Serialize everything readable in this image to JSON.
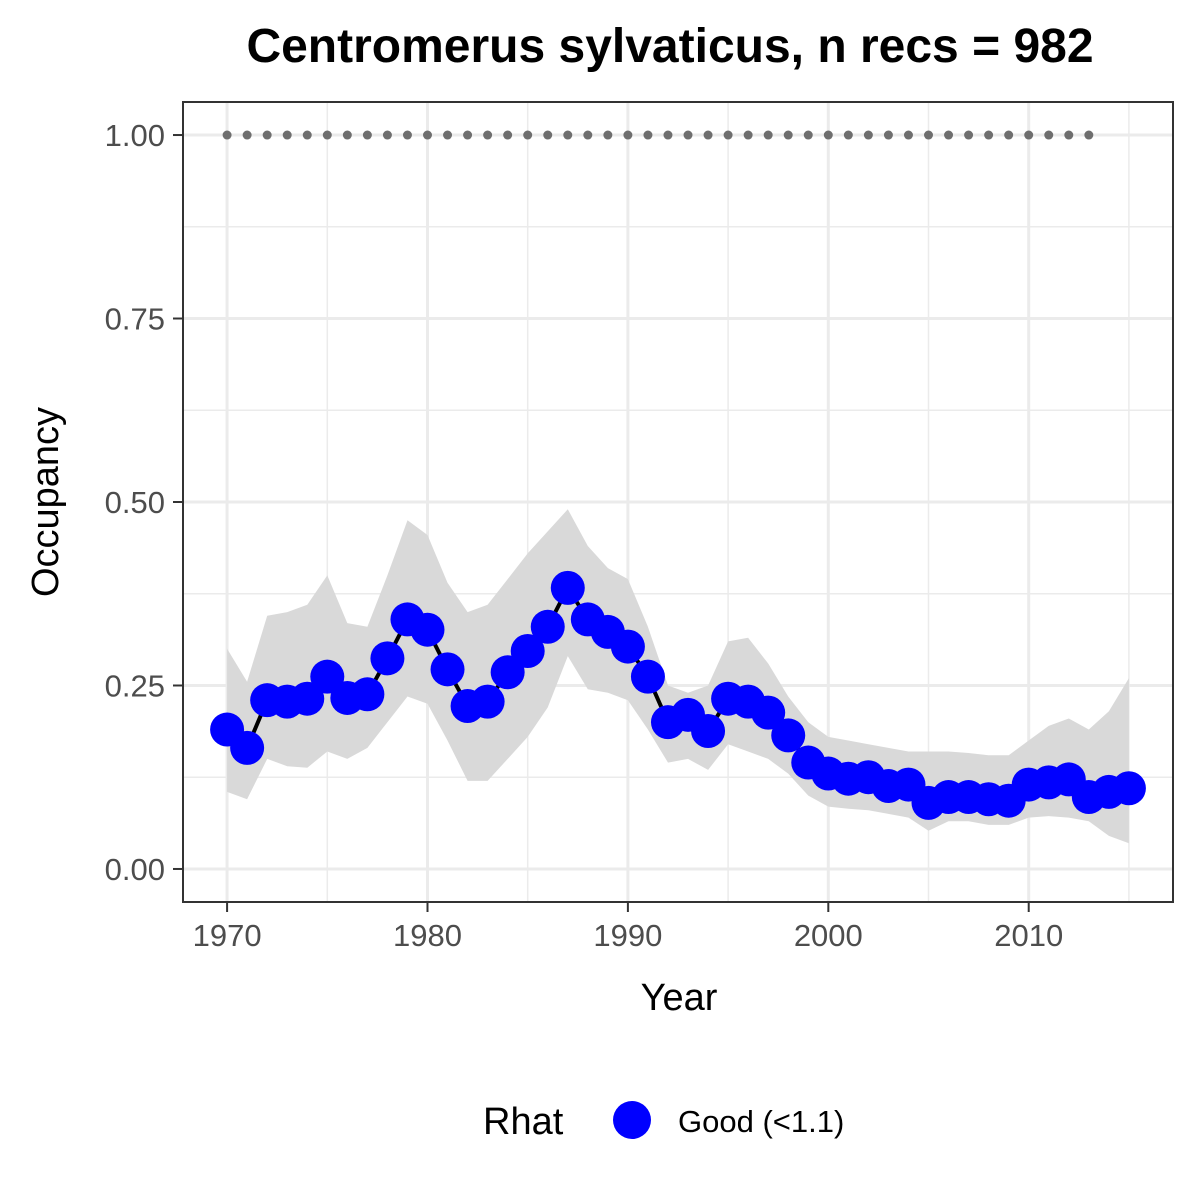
{
  "chart_data": {
    "type": "line",
    "title": "Centromerus sylvaticus, n recs = 982",
    "xlabel": "Year",
    "ylabel": "Occupancy",
    "xlim": [
      1967.8,
      11017.2
    ],
    "ylim": [
      -0.045,
      1.045
    ],
    "x_ticks": [
      1970,
      1980,
      1990,
      2000,
      2010
    ],
    "x_tick_labels": [
      "1970",
      "1980",
      "1990",
      "2000",
      "2010"
    ],
    "y_ticks": [
      0,
      0.25,
      0.5,
      0.75,
      1
    ],
    "y_tick_labels": [
      "0.00",
      "0.25",
      "0.50",
      "0.75",
      "1.00"
    ],
    "grid": true,
    "legend": {
      "title": "Rhat",
      "position": "bottom",
      "entries": [
        {
          "label": "Good (<1.1)",
          "color": "#0000ff"
        }
      ]
    },
    "colors": {
      "points": "#0000ff",
      "line": "#000000",
      "ribbon": "#d9d9d9",
      "reference": "#6e6e6e",
      "grid": "#ebebeb",
      "panel_border": "#333333"
    },
    "series": [
      {
        "kind": "occupancy",
        "x": [
          1970,
          1971,
          1972,
          1973,
          1974,
          1975,
          1976,
          1977,
          1978,
          1979,
          1980,
          1981,
          1982,
          1983,
          1984,
          1985,
          1986,
          1987,
          1988,
          1989,
          1990,
          1991,
          1992,
          1993,
          1994,
          1995,
          1996,
          1997,
          1998,
          1999,
          2000,
          2001,
          2002,
          2003,
          2004,
          2005,
          2006,
          2007,
          2008,
          2009,
          2010,
          2011,
          2012,
          2013,
          2014,
          2015
        ],
        "y": [
          0.19,
          0.165,
          0.23,
          0.228,
          0.232,
          0.262,
          0.233,
          0.238,
          0.287,
          0.34,
          0.326,
          0.272,
          0.222,
          0.228,
          0.268,
          0.297,
          0.33,
          0.383,
          0.34,
          0.323,
          0.303,
          0.262,
          0.2,
          0.21,
          0.188,
          0.232,
          0.228,
          0.213,
          0.182,
          0.145,
          0.13,
          0.123,
          0.125,
          0.113,
          0.115,
          0.09,
          0.098,
          0.098,
          0.095,
          0.093,
          0.115,
          0.118,
          0.122,
          0.098,
          0.105,
          0.11
        ],
        "lower": [
          0.105,
          0.095,
          0.15,
          0.14,
          0.138,
          0.16,
          0.15,
          0.165,
          0.2,
          0.235,
          0.225,
          0.175,
          0.12,
          0.12,
          0.15,
          0.18,
          0.22,
          0.29,
          0.245,
          0.24,
          0.23,
          0.19,
          0.145,
          0.15,
          0.135,
          0.17,
          0.16,
          0.15,
          0.13,
          0.1,
          0.085,
          0.082,
          0.08,
          0.075,
          0.07,
          0.052,
          0.065,
          0.065,
          0.06,
          0.06,
          0.07,
          0.072,
          0.07,
          0.065,
          0.045,
          0.035
        ],
        "upper": [
          0.3,
          0.255,
          0.345,
          0.35,
          0.36,
          0.4,
          0.335,
          0.33,
          0.4,
          0.475,
          0.455,
          0.39,
          0.35,
          0.36,
          0.395,
          0.43,
          0.46,
          0.49,
          0.44,
          0.41,
          0.395,
          0.33,
          0.25,
          0.24,
          0.25,
          0.31,
          0.315,
          0.28,
          0.235,
          0.2,
          0.18,
          0.175,
          0.17,
          0.165,
          0.16,
          0.16,
          0.16,
          0.158,
          0.155,
          0.155,
          0.175,
          0.195,
          0.205,
          0.19,
          0.215,
          0.26
        ]
      },
      {
        "kind": "reference",
        "x": [
          1970,
          1971,
          1972,
          1973,
          1974,
          1975,
          1976,
          1977,
          1978,
          1979,
          1980,
          1981,
          1982,
          1983,
          1984,
          1985,
          1986,
          1987,
          1988,
          1989,
          1990,
          1991,
          1992,
          1993,
          1994,
          1995,
          1996,
          1997,
          1998,
          1999,
          2000,
          2001,
          2002,
          2003,
          2004,
          2005,
          2006,
          2007,
          2008,
          2009,
          2010,
          2011,
          2012,
          2013
        ],
        "y": [
          1,
          1,
          1,
          1,
          1,
          1,
          1,
          1,
          1,
          1,
          1,
          1,
          1,
          1,
          1,
          1,
          1,
          1,
          1,
          1,
          1,
          1,
          1,
          1,
          1,
          1,
          1,
          1,
          1,
          1,
          1,
          1,
          1,
          1,
          1,
          1,
          1,
          1,
          1,
          1,
          1,
          1,
          1,
          1
        ]
      }
    ]
  }
}
